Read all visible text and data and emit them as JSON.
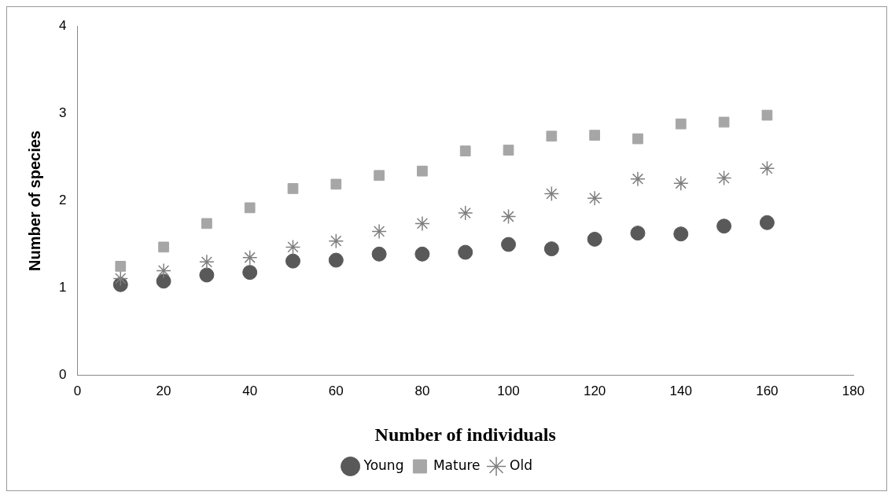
{
  "chart_data": {
    "type": "scatter",
    "xlabel": "Number of individuals",
    "ylabel": "Number of species",
    "x": [
      10,
      20,
      30,
      40,
      50,
      60,
      70,
      80,
      90,
      100,
      110,
      120,
      130,
      140,
      150,
      160
    ],
    "series": [
      {
        "name": "Young",
        "color": "#595959",
        "marker": "circle",
        "values": [
          1.04,
          1.08,
          1.15,
          1.18,
          1.31,
          1.32,
          1.39,
          1.39,
          1.41,
          1.5,
          1.45,
          1.56,
          1.63,
          1.62,
          1.71,
          1.75
        ]
      },
      {
        "name": "Mature",
        "color": "#a6a6a6",
        "marker": "square",
        "values": [
          1.25,
          1.47,
          1.74,
          1.92,
          2.14,
          2.19,
          2.29,
          2.34,
          2.57,
          2.58,
          2.74,
          2.75,
          2.71,
          2.88,
          2.9,
          2.98
        ]
      },
      {
        "name": "Old",
        "color": "#7f7f7f",
        "marker": "cross",
        "values": [
          1.11,
          1.2,
          1.3,
          1.35,
          1.47,
          1.54,
          1.65,
          1.74,
          1.86,
          1.82,
          2.08,
          2.03,
          2.25,
          2.2,
          2.26,
          2.37
        ]
      }
    ],
    "xlim": [
      0,
      180
    ],
    "xticks": [
      0,
      20,
      40,
      60,
      80,
      100,
      120,
      140,
      160,
      180
    ],
    "ylim": [
      0,
      4
    ],
    "yticks": [
      0,
      1,
      2,
      3,
      4
    ],
    "grid": false,
    "legend": "bottom"
  }
}
